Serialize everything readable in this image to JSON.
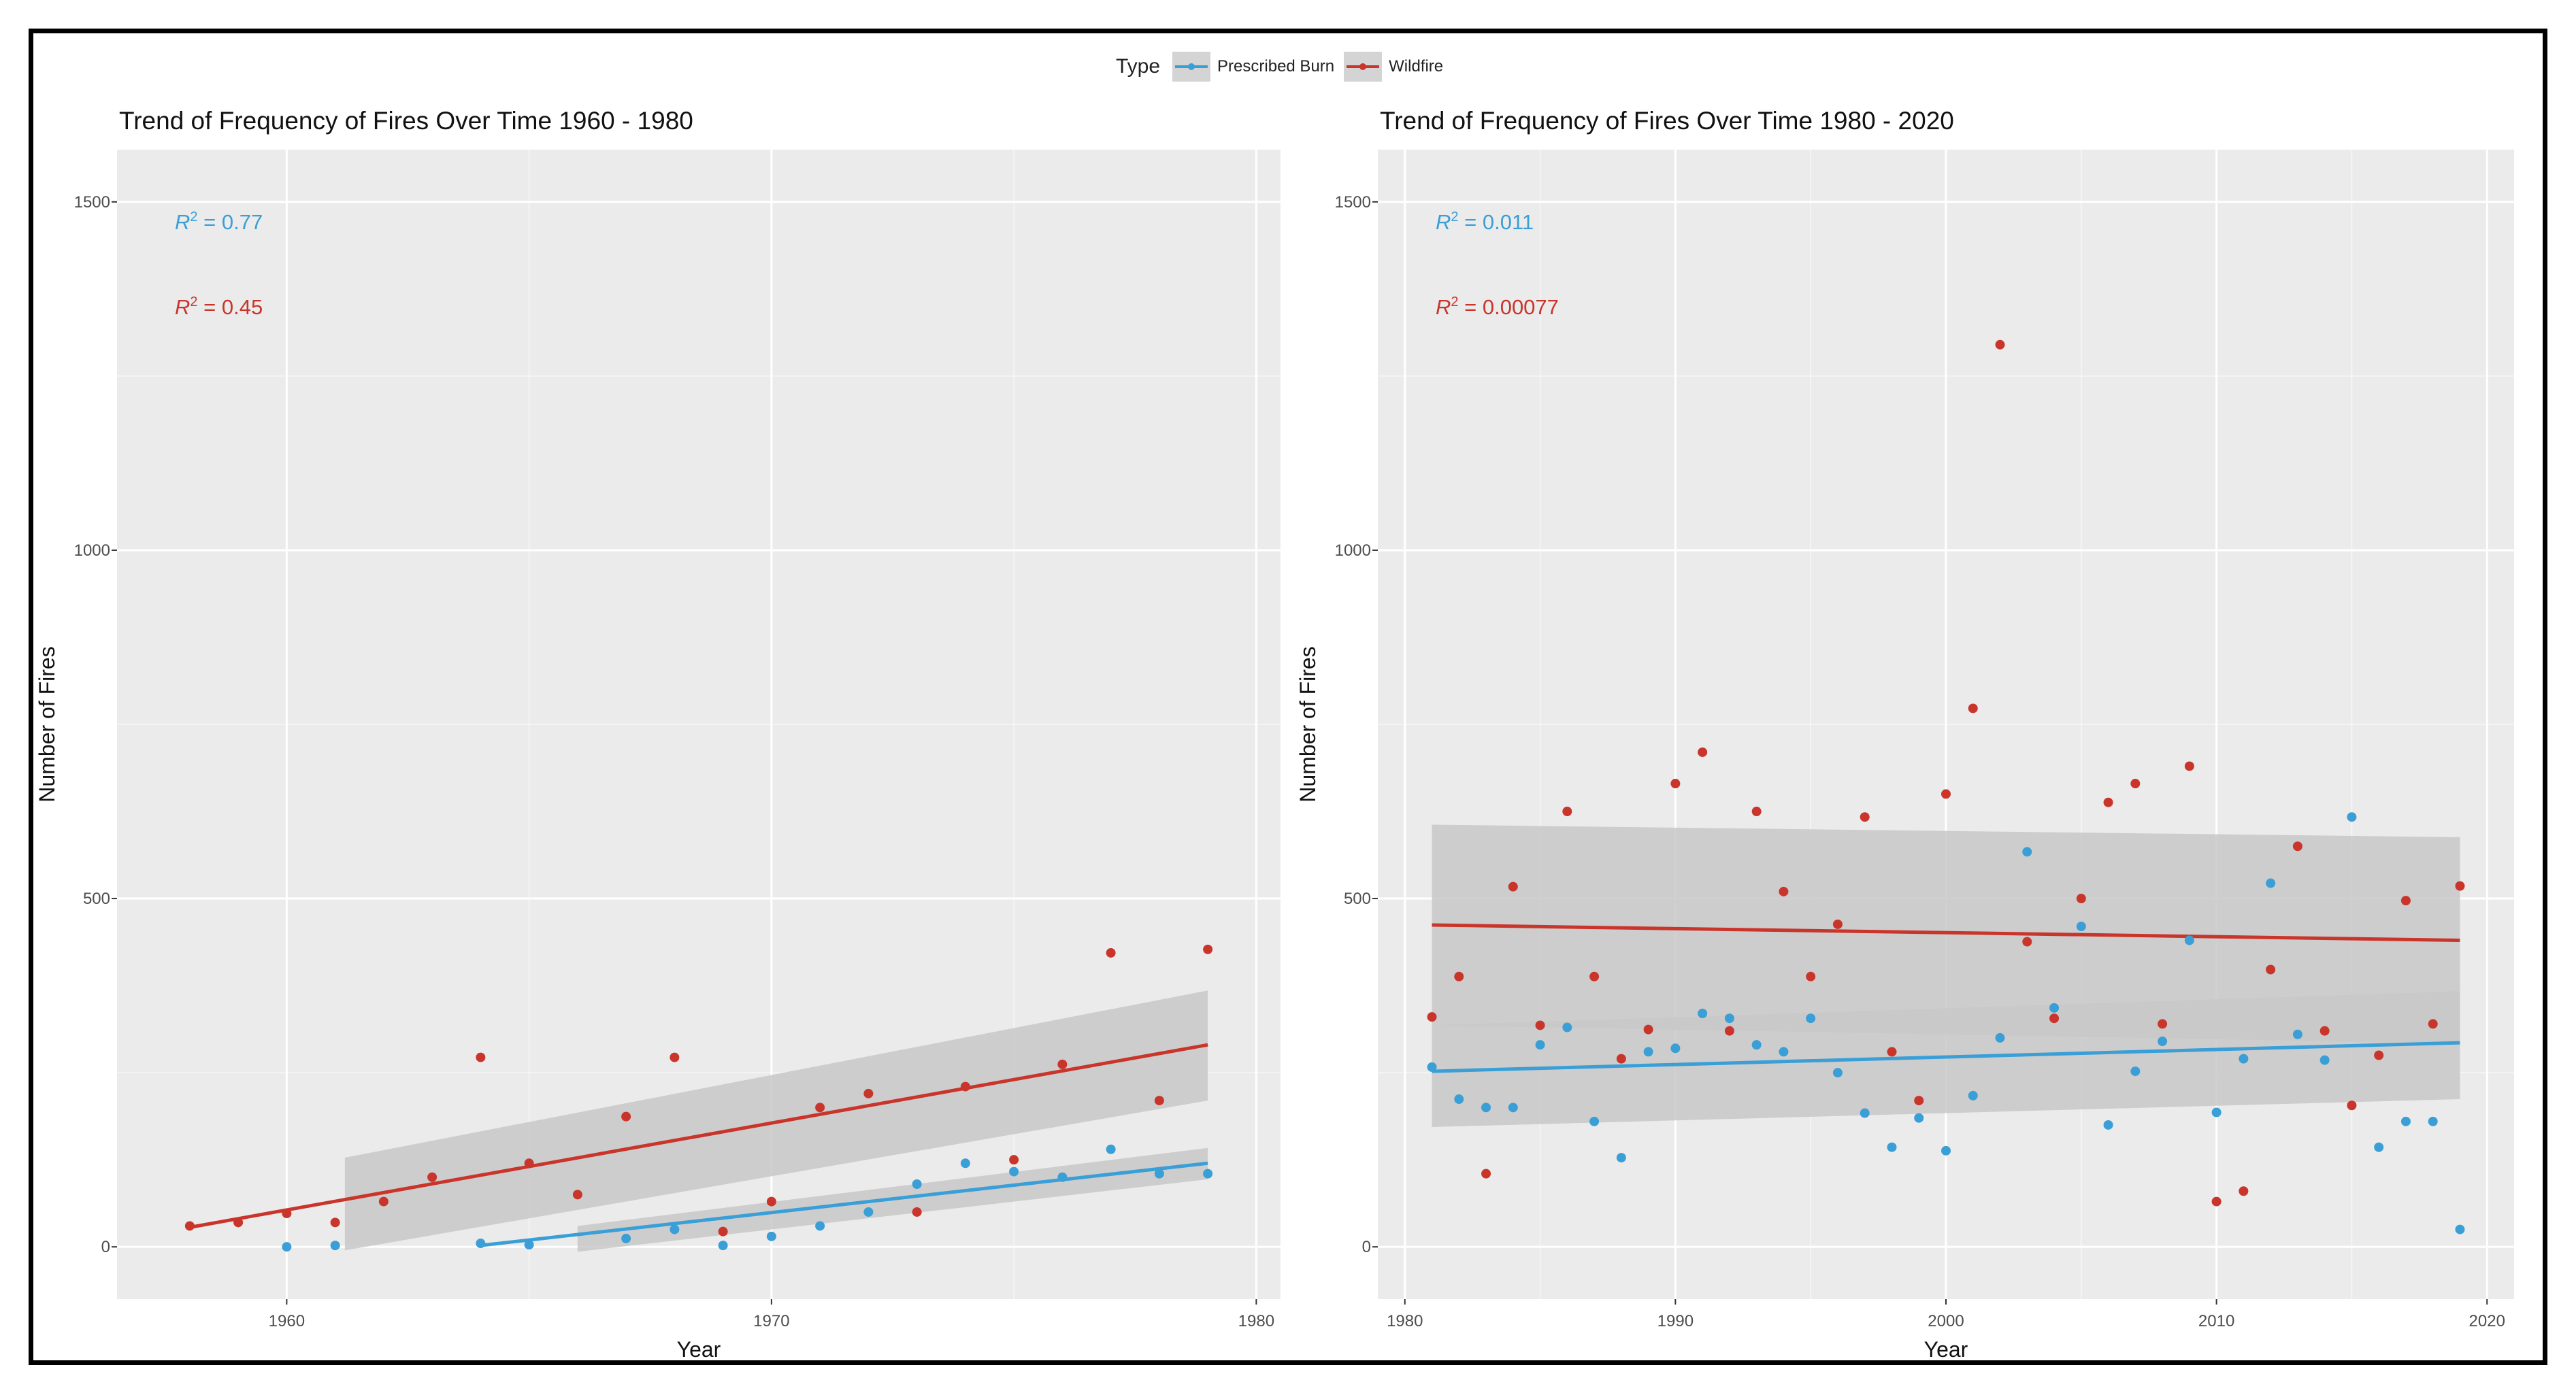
{
  "colors": {
    "prescribed": "#3a9fd6",
    "wildfire": "#c9352b",
    "panel_bg": "#ebebeb",
    "band": "#c8c8c8",
    "grid": "#ffffff"
  },
  "legend": {
    "title": "Type",
    "items": [
      "Prescribed Burn",
      "Wildfire"
    ]
  },
  "chart_data": [
    {
      "type": "scatter",
      "title": "Trend of Frequency of Fires Over Time 1960 - 1980",
      "xlabel": "Year",
      "ylabel": "Number of Fires",
      "xlim": [
        1956.5,
        1980.5
      ],
      "ylim": [
        -75,
        1575
      ],
      "xticks": [
        1960,
        1970,
        1980
      ],
      "xtick_labels": [
        "1960",
        "1970",
        "1980"
      ],
      "yticks": [
        0,
        500,
        1000,
        1500
      ],
      "ytick_labels": [
        "0",
        "500",
        "1000",
        "1500"
      ],
      "annotations": [
        {
          "label": "R",
          "sup": "2",
          "value": " = 0.77",
          "series": "Prescribed Burn"
        },
        {
          "label": "R",
          "sup": "2",
          "value": " = 0.45",
          "series": "Wildfire"
        }
      ],
      "series": [
        {
          "name": "Prescribed Burn",
          "points": [
            [
              1960,
              0
            ],
            [
              1961,
              2
            ],
            [
              1964,
              5
            ],
            [
              1965,
              3
            ],
            [
              1967,
              12
            ],
            [
              1968,
              25
            ],
            [
              1969,
              2
            ],
            [
              1970,
              15
            ],
            [
              1971,
              30
            ],
            [
              1972,
              50
            ],
            [
              1973,
              90
            ],
            [
              1974,
              120
            ],
            [
              1975,
              108
            ],
            [
              1976,
              100
            ],
            [
              1977,
              140
            ],
            [
              1978,
              105
            ],
            [
              1979,
              105
            ]
          ],
          "fit": {
            "x0": 1964,
            "x1": 1979,
            "y0": 2,
            "y1": 120,
            "band_x0": 1966,
            "band_lo0": -7,
            "band_hi0": 30,
            "band_lo1": 97,
            "band_hi1": 142
          }
        },
        {
          "name": "Wildfire",
          "points": [
            [
              1958,
              30
            ],
            [
              1959,
              35
            ],
            [
              1960,
              48
            ],
            [
              1961,
              35
            ],
            [
              1962,
              65
            ],
            [
              1963,
              100
            ],
            [
              1964,
              272
            ],
            [
              1965,
              120
            ],
            [
              1966,
              75
            ],
            [
              1967,
              187
            ],
            [
              1968,
              272
            ],
            [
              1969,
              22
            ],
            [
              1970,
              65
            ],
            [
              1971,
              200
            ],
            [
              1972,
              220
            ],
            [
              1973,
              50
            ],
            [
              1974,
              230
            ],
            [
              1975,
              125
            ],
            [
              1976,
              262
            ],
            [
              1977,
              422
            ],
            [
              1978,
              210
            ],
            [
              1979,
              427
            ]
          ],
          "fit": {
            "x0": 1958,
            "x1": 1979,
            "y0": 28,
            "y1": 290,
            "band_x0": 1961.2,
            "band_lo0": -5,
            "band_hi0": 128,
            "band_lo1": 210,
            "band_hi1": 368
          }
        }
      ]
    },
    {
      "type": "scatter",
      "title": "Trend of Frequency of Fires Over Time 1980 - 2020",
      "xlabel": "Year",
      "ylabel": "Number of Fires",
      "xlim": [
        1979,
        2021
      ],
      "ylim": [
        -75,
        1575
      ],
      "xticks": [
        1980,
        1990,
        2000,
        2010,
        2020
      ],
      "xtick_labels": [
        "1980",
        "1990",
        "2000",
        "2010",
        "2020"
      ],
      "yticks": [
        0,
        500,
        1000,
        1500
      ],
      "ytick_labels": [
        "0",
        "500",
        "1000",
        "1500"
      ],
      "annotations": [
        {
          "label": "R",
          "sup": "2",
          "value": " = 0.011",
          "series": "Prescribed Burn"
        },
        {
          "label": "R",
          "sup": "2",
          "value": " = 0.00077",
          "series": "Wildfire"
        }
      ],
      "series": [
        {
          "name": "Prescribed Burn",
          "points": [
            [
              1981,
              258
            ],
            [
              1982,
              212
            ],
            [
              1983,
              200
            ],
            [
              1984,
              200
            ],
            [
              1985,
              290
            ],
            [
              1986,
              315
            ],
            [
              1987,
              180
            ],
            [
              1988,
              128
            ],
            [
              1989,
              280
            ],
            [
              1990,
              285
            ],
            [
              1991,
              335
            ],
            [
              1992,
              328
            ],
            [
              1993,
              290
            ],
            [
              1994,
              280
            ],
            [
              1995,
              328
            ],
            [
              1996,
              250
            ],
            [
              1997,
              192
            ],
            [
              1998,
              143
            ],
            [
              1999,
              185
            ],
            [
              2000,
              138
            ],
            [
              2001,
              217
            ],
            [
              2002,
              300
            ],
            [
              2003,
              567
            ],
            [
              2004,
              343
            ],
            [
              2005,
              460
            ],
            [
              2006,
              175
            ],
            [
              2007,
              252
            ],
            [
              2008,
              295
            ],
            [
              2009,
              440
            ],
            [
              2010,
              193
            ],
            [
              2011,
              270
            ],
            [
              2012,
              522
            ],
            [
              2013,
              305
            ],
            [
              2014,
              268
            ],
            [
              2015,
              617
            ],
            [
              2016,
              143
            ],
            [
              2017,
              180
            ],
            [
              2018,
              180
            ],
            [
              2019,
              25
            ]
          ],
          "fit": {
            "x0": 1981,
            "x1": 2019,
            "y0": 252,
            "y1": 293,
            "band_x0": 1981,
            "band_lo0": 172,
            "band_hi0": 318,
            "band_lo1": 212,
            "band_hi1": 367
          }
        },
        {
          "name": "Wildfire",
          "points": [
            [
              1981,
              330
            ],
            [
              1982,
              388
            ],
            [
              1983,
              105
            ],
            [
              1984,
              517
            ],
            [
              1985,
              318
            ],
            [
              1986,
              625
            ],
            [
              1987,
              388
            ],
            [
              1988,
              270
            ],
            [
              1989,
              312
            ],
            [
              1990,
              665
            ],
            [
              1991,
              710
            ],
            [
              1992,
              310
            ],
            [
              1993,
              625
            ],
            [
              1994,
              510
            ],
            [
              1995,
              388
            ],
            [
              1996,
              463
            ],
            [
              1997,
              617
            ],
            [
              1998,
              280
            ],
            [
              1999,
              210
            ],
            [
              2000,
              650
            ],
            [
              2001,
              773
            ],
            [
              2002,
              1295
            ],
            [
              2003,
              438
            ],
            [
              2004,
              328
            ],
            [
              2005,
              500
            ],
            [
              2006,
              638
            ],
            [
              2007,
              665
            ],
            [
              2008,
              320
            ],
            [
              2009,
              690
            ],
            [
              2010,
              65
            ],
            [
              2011,
              80
            ],
            [
              2012,
              398
            ],
            [
              2013,
              575
            ],
            [
              2014,
              310
            ],
            [
              2015,
              203
            ],
            [
              2016,
              275
            ],
            [
              2017,
              497
            ],
            [
              2018,
              320
            ],
            [
              2019,
              518
            ]
          ],
          "fit": {
            "x0": 1981,
            "x1": 2019,
            "y0": 462,
            "y1": 440,
            "band_x0": 1981,
            "band_lo0": 318,
            "band_hi0": 606,
            "band_lo1": 292,
            "band_hi1": 588
          }
        }
      ]
    }
  ]
}
